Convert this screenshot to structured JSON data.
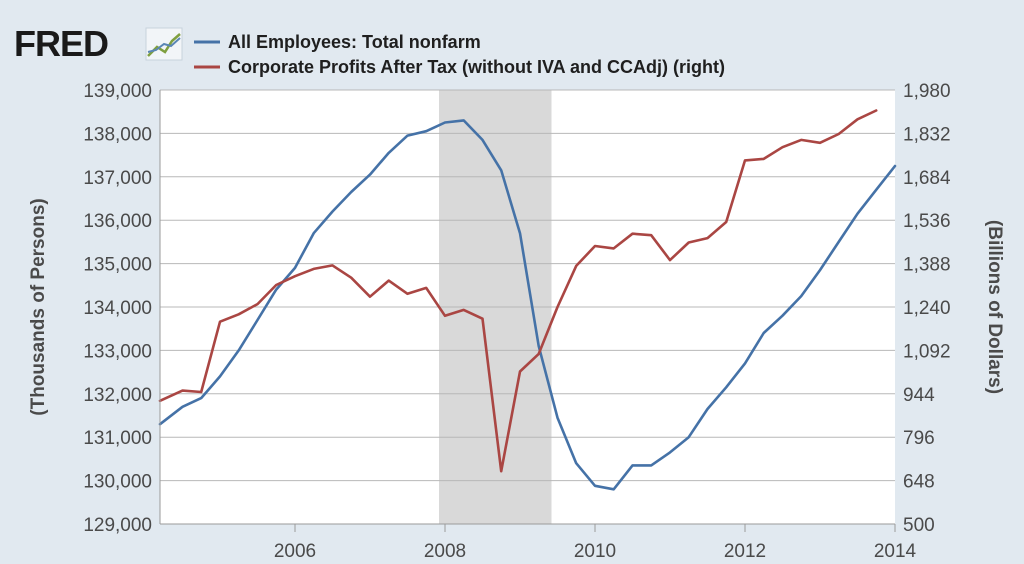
{
  "header": {
    "logo_text": "FRED",
    "logo_icon": "line-graph-icon"
  },
  "colors": {
    "background": "#e1e9f0",
    "plot_background": "#ffffff",
    "grid": "#b8b8b8",
    "recession": "#d9d9d9",
    "series_employees": "#4572a7",
    "series_profits": "#aa4643"
  },
  "chart_data": {
    "type": "line",
    "title": "",
    "xlabel": "",
    "xlim": [
      2004.2,
      2014.0
    ],
    "x_ticks": [
      2006,
      2008,
      2010,
      2012,
      2014
    ],
    "x_tick_labels": [
      "2006",
      "2008",
      "2010",
      "2012",
      "2014"
    ],
    "recession_shading": [
      [
        2007.92,
        2009.42
      ]
    ],
    "y_left": {
      "label": "(Thousands of Persons)",
      "ylim": [
        129000,
        139000
      ],
      "ticks": [
        129000,
        130000,
        131000,
        132000,
        133000,
        134000,
        135000,
        136000,
        137000,
        138000,
        139000
      ],
      "tick_labels": [
        "129,000",
        "130,000",
        "131,000",
        "132,000",
        "133,000",
        "134,000",
        "135,000",
        "136,000",
        "137,000",
        "138,000",
        "139,000"
      ]
    },
    "y_right": {
      "label": "(Billions of Dollars)",
      "ylim": [
        500,
        1980
      ],
      "ticks": [
        500,
        648,
        796,
        944,
        1092,
        1240,
        1388,
        1536,
        1684,
        1832,
        1980
      ],
      "tick_labels": [
        "500",
        "648",
        "796",
        "944",
        "1,092",
        "1,240",
        "1,388",
        "1,536",
        "1,684",
        "1,832",
        "1,980"
      ]
    },
    "series": [
      {
        "name": "All Employees: Total nonfarm",
        "axis": "left",
        "x": [
          2004.2,
          2004.5,
          2004.75,
          2005.0,
          2005.25,
          2005.5,
          2005.75,
          2006.0,
          2006.25,
          2006.5,
          2006.75,
          2007.0,
          2007.25,
          2007.5,
          2007.75,
          2008.0,
          2008.25,
          2008.5,
          2008.75,
          2009.0,
          2009.25,
          2009.5,
          2009.75,
          2010.0,
          2010.25,
          2010.5,
          2010.75,
          2011.0,
          2011.25,
          2011.5,
          2011.75,
          2012.0,
          2012.25,
          2012.5,
          2012.75,
          2013.0,
          2013.25,
          2013.5,
          2013.75,
          2014.0
        ],
        "values": [
          131300,
          131700,
          131900,
          132400,
          133000,
          133700,
          134400,
          134900,
          135700,
          136200,
          136650,
          137050,
          137550,
          137950,
          138050,
          138250,
          138300,
          137850,
          137150,
          135700,
          133100,
          131450,
          130400,
          129880,
          129800,
          130350,
          130350,
          130650,
          131000,
          131650,
          132150,
          132700,
          133400,
          133800,
          134250,
          134850,
          135500,
          136150,
          136700,
          137250
        ]
      },
      {
        "name": "Corporate Profits After Tax (without IVA and CCAdj) (right)",
        "axis": "right",
        "x": [
          2004.2,
          2004.5,
          2004.75,
          2005.0,
          2005.25,
          2005.5,
          2005.75,
          2006.0,
          2006.25,
          2006.5,
          2006.75,
          2007.0,
          2007.25,
          2007.5,
          2007.75,
          2008.0,
          2008.25,
          2008.5,
          2008.75,
          2009.0,
          2009.25,
          2009.5,
          2009.75,
          2010.0,
          2010.25,
          2010.5,
          2010.75,
          2011.0,
          2011.25,
          2011.5,
          2011.75,
          2012.0,
          2012.25,
          2012.5,
          2012.75,
          2013.0,
          2013.25,
          2013.5,
          2013.75
        ],
        "values": [
          920,
          955,
          950,
          1190,
          1215,
          1250,
          1315,
          1345,
          1370,
          1382,
          1340,
          1275,
          1330,
          1285,
          1305,
          1210,
          1230,
          1200,
          680,
          1020,
          1080,
          1240,
          1380,
          1448,
          1440,
          1490,
          1485,
          1400,
          1460,
          1475,
          1530,
          1740,
          1745,
          1785,
          1810,
          1800,
          1830,
          1880,
          1910
        ]
      }
    ]
  }
}
